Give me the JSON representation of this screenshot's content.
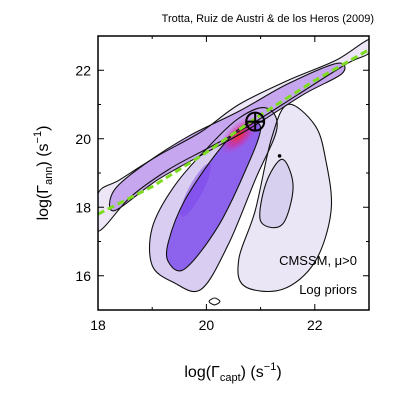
{
  "chart_data": {
    "type": "contour",
    "credit": "Trotta, Ruiz de Austri & de los Heros (2009)",
    "xlabel": {
      "main": "log(Γ",
      "sub": "capt",
      "close": ")",
      "unit": " (s",
      "unit_exp": "−1",
      "unit_close": ")"
    },
    "ylabel": {
      "main": "log(Γ",
      "sub": "ann",
      "close": ")",
      "unit": " (s",
      "unit_exp": "−1",
      "unit_close": ")"
    },
    "xlim": [
      18,
      23
    ],
    "ylim": [
      15,
      23
    ],
    "xticks": [
      18,
      20,
      22
    ],
    "yticks": [
      16,
      18,
      20,
      22
    ],
    "annotations": [
      "CMSSM, μ>0",
      "Log priors"
    ],
    "equilibrium_line": {
      "color": "#7ddc1f",
      "style": "dashed",
      "points": [
        [
          18,
          17.8
        ],
        [
          19,
          18.6
        ],
        [
          20,
          19.6
        ],
        [
          21,
          20.7
        ],
        [
          22,
          21.7
        ],
        [
          23,
          22.6
        ]
      ]
    },
    "best_fit": {
      "x": 20.9,
      "y": 20.5,
      "marker": "circle-cross"
    },
    "contours": {
      "main_outer": [
        [
          18.0,
          17.3
        ],
        [
          18.6,
          18.3
        ],
        [
          19.3,
          19.1
        ],
        [
          20.0,
          19.7
        ],
        [
          20.8,
          20.4
        ],
        [
          21.7,
          21.3
        ],
        [
          22.6,
          22.2
        ],
        [
          23.0,
          22.5
        ],
        [
          23.0,
          22.9
        ],
        [
          22.4,
          22.3
        ],
        [
          21.5,
          21.7
        ],
        [
          20.6,
          21.0
        ],
        [
          19.9,
          20.2
        ],
        [
          19.1,
          19.5
        ],
        [
          18.4,
          18.8
        ],
        [
          18.0,
          18.4
        ]
      ],
      "main_inner": [
        [
          18.3,
          17.9
        ],
        [
          19.1,
          18.8
        ],
        [
          20.0,
          19.6
        ],
        [
          20.8,
          20.3
        ],
        [
          21.8,
          21.3
        ],
        [
          22.5,
          21.9
        ],
        [
          22.4,
          22.2
        ],
        [
          21.5,
          21.6
        ],
        [
          20.6,
          20.8
        ],
        [
          19.7,
          20.1
        ],
        [
          18.9,
          19.3
        ],
        [
          18.3,
          18.5
        ]
      ],
      "lower_lobe_outer": [
        [
          19.0,
          16.3
        ],
        [
          19.4,
          15.8
        ],
        [
          19.9,
          15.6
        ],
        [
          20.4,
          16.9
        ],
        [
          20.9,
          18.8
        ],
        [
          21.3,
          20.3
        ],
        [
          21.1,
          20.9
        ],
        [
          20.6,
          20.6
        ],
        [
          20.0,
          19.7
        ],
        [
          19.4,
          18.6
        ],
        [
          19.0,
          17.4
        ]
      ],
      "lower_lobe_inner": [
        [
          19.3,
          16.4
        ],
        [
          19.6,
          16.2
        ],
        [
          20.2,
          17.4
        ],
        [
          20.7,
          19.0
        ],
        [
          21.0,
          20.3
        ],
        [
          20.7,
          20.4
        ],
        [
          20.2,
          19.6
        ],
        [
          19.6,
          18.2
        ],
        [
          19.3,
          17.0
        ]
      ],
      "right_lobe_outer": [
        [
          20.7,
          15.7
        ],
        [
          21.4,
          15.6
        ],
        [
          22.0,
          16.4
        ],
        [
          22.3,
          17.9
        ],
        [
          22.2,
          19.4
        ],
        [
          22.0,
          20.4
        ],
        [
          21.5,
          21.0
        ],
        [
          21.2,
          20.0
        ],
        [
          20.9,
          17.9
        ],
        [
          20.6,
          16.5
        ]
      ],
      "right_lobe_inner": [
        [
          21.0,
          17.6
        ],
        [
          21.4,
          17.5
        ],
        [
          21.6,
          18.6
        ],
        [
          21.4,
          19.4
        ],
        [
          21.1,
          18.7
        ]
      ],
      "small_island": [
        [
          20.05,
          15.25
        ],
        [
          20.15,
          15.15
        ],
        [
          20.25,
          15.25
        ],
        [
          20.15,
          15.35
        ]
      ]
    }
  }
}
